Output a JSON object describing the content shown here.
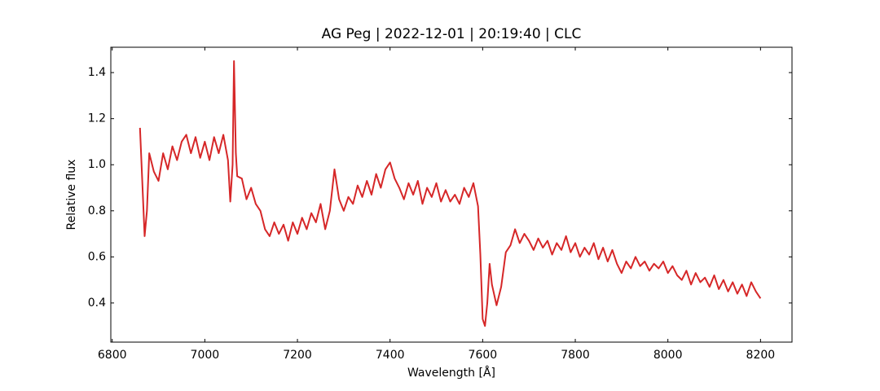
{
  "chart_data": {
    "type": "line",
    "title": "AG Peg | 2022-12-01 | 20:19:40 | CLC",
    "x_label": "Wavelength [Å]",
    "y_label": "Relative flux",
    "xlim": [
      6797,
      8268
    ],
    "ylim": [
      0.23,
      1.51
    ],
    "xticks": [
      6800,
      7000,
      7200,
      7400,
      7600,
      7800,
      8000,
      8200
    ],
    "yticks": [
      0.4,
      0.6,
      0.8,
      {
        "value": 1.0,
        "label": "1.0"
      },
      1.2,
      1.4
    ],
    "grid": false,
    "series": [
      {
        "color": "#d62728",
        "x": [
          6860,
          6870,
          6875,
          6880,
          6890,
          6900,
          6910,
          6920,
          6930,
          6940,
          6950,
          6960,
          6970,
          6980,
          6990,
          7000,
          7010,
          7020,
          7030,
          7040,
          7050,
          7055,
          7060,
          7063,
          7067,
          7070,
          7080,
          7090,
          7100,
          7110,
          7120,
          7130,
          7140,
          7150,
          7160,
          7170,
          7180,
          7190,
          7200,
          7210,
          7220,
          7230,
          7240,
          7250,
          7260,
          7270,
          7280,
          7290,
          7300,
          7310,
          7320,
          7330,
          7340,
          7350,
          7360,
          7370,
          7380,
          7390,
          7400,
          7410,
          7420,
          7430,
          7440,
          7450,
          7460,
          7470,
          7480,
          7490,
          7500,
          7510,
          7520,
          7530,
          7540,
          7550,
          7560,
          7570,
          7580,
          7590,
          7595,
          7600,
          7605,
          7610,
          7615,
          7620,
          7630,
          7640,
          7650,
          7660,
          7670,
          7680,
          7690,
          7700,
          7710,
          7720,
          7730,
          7740,
          7750,
          7760,
          7770,
          7780,
          7790,
          7800,
          7810,
          7820,
          7830,
          7840,
          7850,
          7860,
          7870,
          7880,
          7890,
          7900,
          7910,
          7920,
          7930,
          7940,
          7950,
          7960,
          7970,
          7980,
          7990,
          8000,
          8010,
          8020,
          8030,
          8040,
          8050,
          8060,
          8070,
          8080,
          8090,
          8100,
          8110,
          8120,
          8130,
          8140,
          8150,
          8160,
          8170,
          8180,
          8190,
          8200
        ],
        "values": [
          1.16,
          0.69,
          0.8,
          1.05,
          0.97,
          0.93,
          1.05,
          0.98,
          1.08,
          1.02,
          1.1,
          1.13,
          1.05,
          1.12,
          1.03,
          1.1,
          1.02,
          1.12,
          1.05,
          1.13,
          1.02,
          0.84,
          1.0,
          1.45,
          1.05,
          0.95,
          0.94,
          0.85,
          0.9,
          0.83,
          0.8,
          0.72,
          0.69,
          0.75,
          0.7,
          0.74,
          0.67,
          0.75,
          0.7,
          0.77,
          0.72,
          0.79,
          0.75,
          0.83,
          0.72,
          0.8,
          0.98,
          0.85,
          0.8,
          0.86,
          0.83,
          0.91,
          0.86,
          0.93,
          0.87,
          0.96,
          0.9,
          0.98,
          1.01,
          0.94,
          0.9,
          0.85,
          0.92,
          0.87,
          0.93,
          0.83,
          0.9,
          0.86,
          0.92,
          0.84,
          0.89,
          0.84,
          0.87,
          0.83,
          0.9,
          0.86,
          0.92,
          0.82,
          0.61,
          0.33,
          0.3,
          0.4,
          0.57,
          0.48,
          0.39,
          0.47,
          0.62,
          0.65,
          0.72,
          0.66,
          0.7,
          0.67,
          0.63,
          0.68,
          0.64,
          0.67,
          0.61,
          0.66,
          0.63,
          0.69,
          0.62,
          0.66,
          0.6,
          0.64,
          0.61,
          0.66,
          0.59,
          0.64,
          0.58,
          0.63,
          0.57,
          0.53,
          0.58,
          0.55,
          0.6,
          0.56,
          0.58,
          0.54,
          0.57,
          0.55,
          0.58,
          0.53,
          0.56,
          0.52,
          0.5,
          0.54,
          0.48,
          0.53,
          0.49,
          0.51,
          0.47,
          0.52,
          0.46,
          0.5,
          0.45,
          0.49,
          0.44,
          0.48,
          0.43,
          0.49,
          0.45,
          0.42
        ]
      }
    ]
  }
}
